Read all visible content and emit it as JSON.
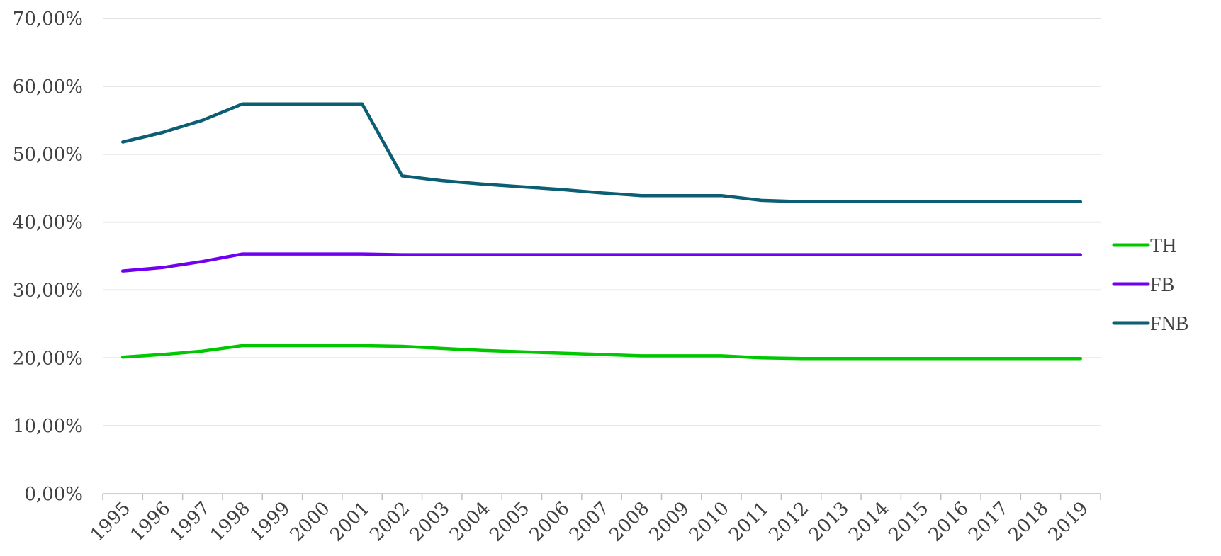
{
  "chart_data": {
    "type": "line",
    "x": [
      "1995",
      "1996",
      "1997",
      "1998",
      "1999",
      "2000",
      "2001",
      "2002",
      "2003",
      "2004",
      "2005",
      "2006",
      "2007",
      "2008",
      "2009",
      "2010",
      "2011",
      "2012",
      "2013",
      "2014",
      "2015",
      "2016",
      "2017",
      "2018",
      "2019"
    ],
    "y_ticks": [
      "0,00%",
      "10,00%",
      "20,00%",
      "30,00%",
      "40,00%",
      "50,00%",
      "60,00%",
      "70,00%"
    ],
    "ylim": [
      0,
      70
    ],
    "grid": true,
    "legend_position": "right",
    "series": [
      {
        "name": "TH",
        "color": "#00c800",
        "values": [
          20.1,
          20.5,
          21.0,
          21.8,
          21.8,
          21.8,
          21.8,
          21.7,
          21.4,
          21.1,
          20.9,
          20.7,
          20.5,
          20.3,
          20.3,
          20.3,
          20.0,
          19.9,
          19.9,
          19.9,
          19.9,
          19.9,
          19.9,
          19.9,
          19.9
        ]
      },
      {
        "name": "FB",
        "color": "#7000f0",
        "values": [
          32.8,
          33.3,
          34.2,
          35.3,
          35.3,
          35.3,
          35.3,
          35.2,
          35.2,
          35.2,
          35.2,
          35.2,
          35.2,
          35.2,
          35.2,
          35.2,
          35.2,
          35.2,
          35.2,
          35.2,
          35.2,
          35.2,
          35.2,
          35.2,
          35.2
        ]
      },
      {
        "name": "FNB",
        "color": "#0b5e73",
        "values": [
          51.8,
          53.2,
          55.0,
          57.4,
          57.4,
          57.4,
          57.4,
          46.8,
          46.1,
          45.6,
          45.2,
          44.8,
          44.3,
          43.9,
          43.9,
          43.9,
          43.2,
          43.0,
          43.0,
          43.0,
          43.0,
          43.0,
          43.0,
          43.0,
          43.0
        ]
      }
    ]
  }
}
